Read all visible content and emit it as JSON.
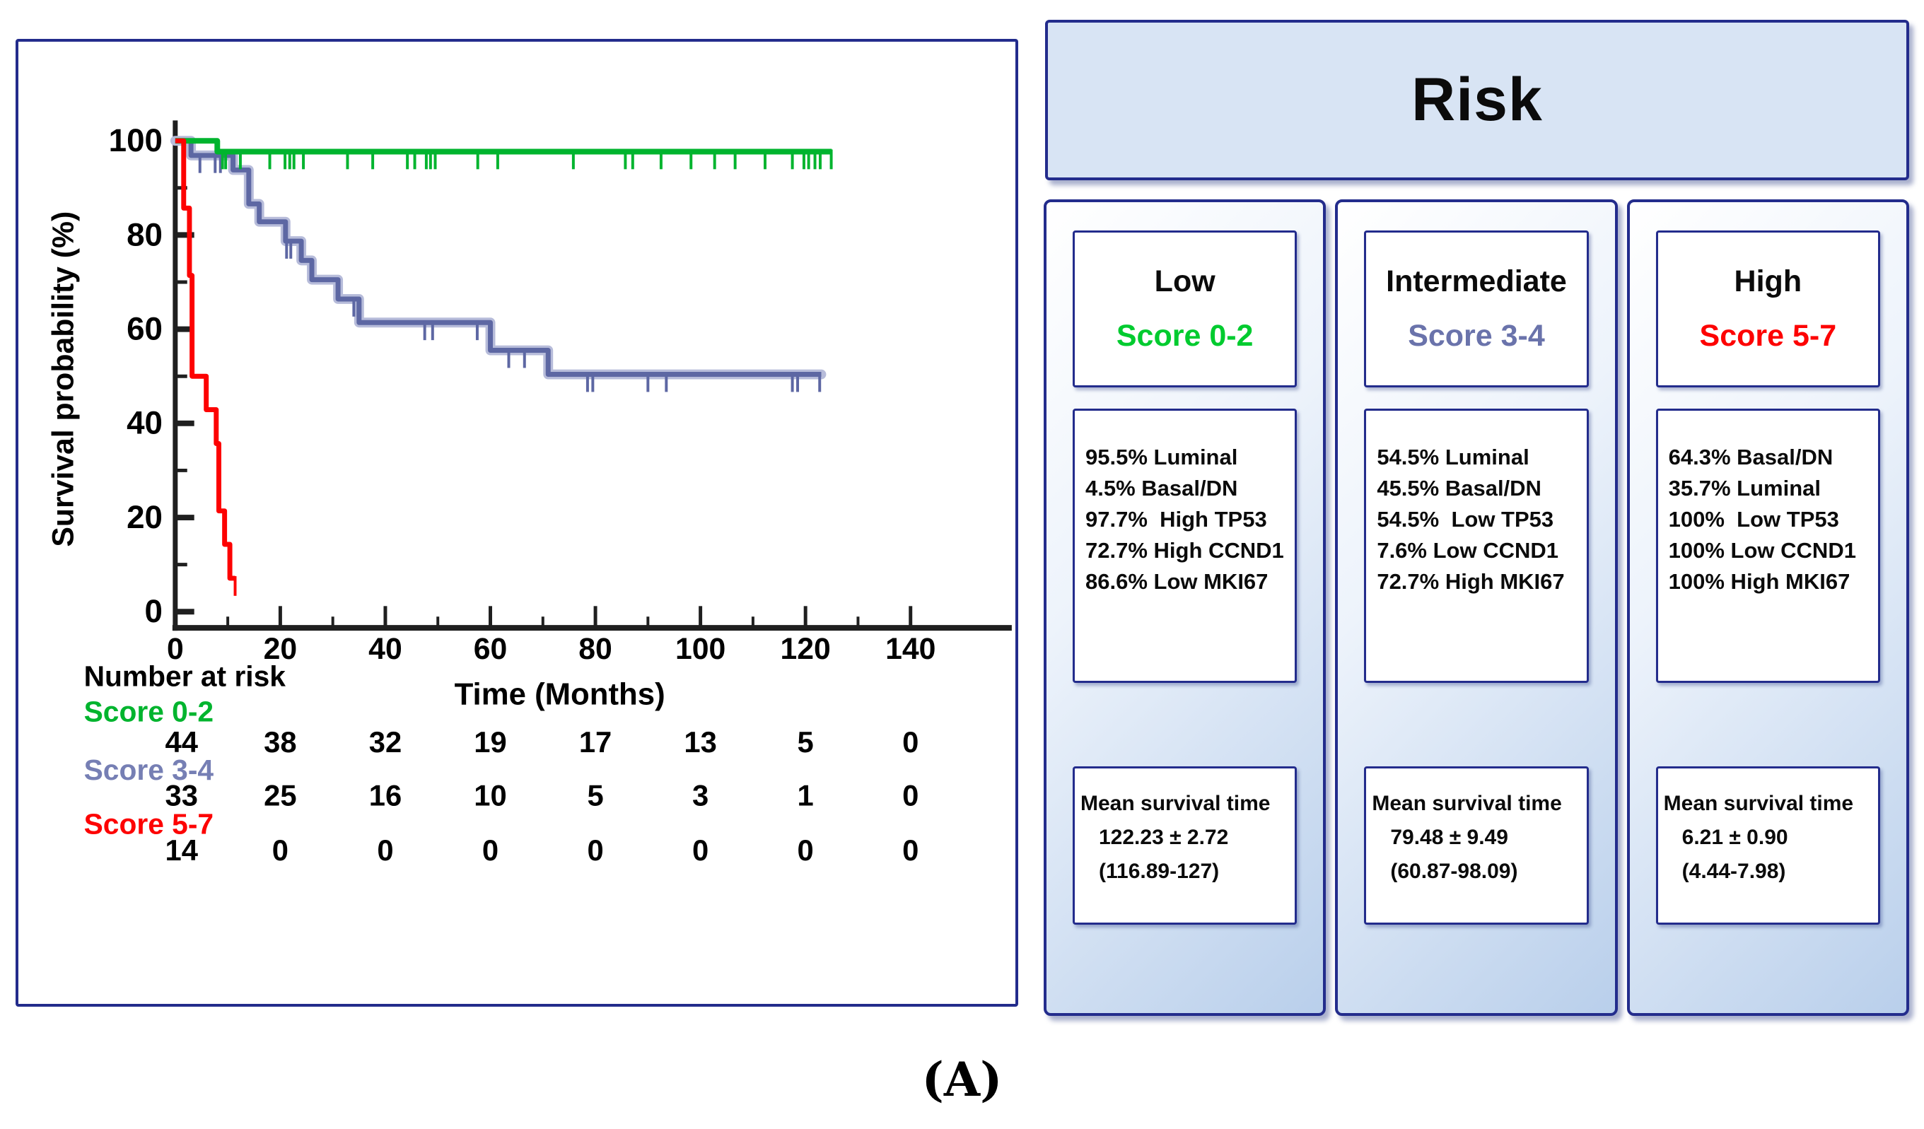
{
  "figure_label": "(A)",
  "chart_data": {
    "type": "line",
    "subtype": "kaplan-meier",
    "title": "",
    "xlabel": "Time (Months)",
    "ylabel": "Survival probability (%)",
    "xlim": [
      0,
      140
    ],
    "ylim": [
      0,
      100
    ],
    "grid": false,
    "x_major_ticks": [
      0,
      20,
      40,
      60,
      80,
      100,
      120,
      140
    ],
    "x_minor_ticks": [
      10,
      30,
      50,
      70,
      90,
      110,
      130
    ],
    "y_major_ticks": [
      0,
      20,
      40,
      60,
      80,
      100
    ],
    "y_minor_ticks": [
      10,
      30,
      50,
      70,
      90
    ],
    "series": [
      {
        "name": "Score 3-4",
        "color": "#5d67a3",
        "halo": "#b7bcda",
        "width": 7,
        "path": [
          [
            0,
            100
          ],
          [
            3,
            100
          ],
          [
            3,
            96.9
          ],
          [
            11,
            96.9
          ],
          [
            11,
            93.8
          ],
          [
            14,
            93.8
          ],
          [
            14,
            86.6
          ],
          [
            16,
            86.6
          ],
          [
            16,
            82.8
          ],
          [
            21,
            82.8
          ],
          [
            21,
            78.7
          ],
          [
            24,
            78.7
          ],
          [
            24,
            74.6
          ],
          [
            26,
            74.6
          ],
          [
            26,
            70.5
          ],
          [
            31,
            70.5
          ],
          [
            31,
            66.4
          ],
          [
            35,
            66.4
          ],
          [
            35,
            61.4
          ],
          [
            60,
            61.4
          ],
          [
            60,
            55.5
          ],
          [
            71,
            55.5
          ],
          [
            71,
            50.4
          ],
          [
            123,
            50.4
          ]
        ],
        "censors": [
          [
            4.7,
            96.9
          ],
          [
            7.6,
            96.9
          ],
          [
            8.6,
            96.9
          ],
          [
            21.2,
            78.7
          ],
          [
            22,
            78.7
          ],
          [
            34,
            66.4
          ],
          [
            34.8,
            66.4
          ],
          [
            47.5,
            61.4
          ],
          [
            49,
            61.4
          ],
          [
            57.5,
            61.4
          ],
          [
            63.5,
            55.5
          ],
          [
            66.5,
            55.5
          ],
          [
            78.5,
            50.4
          ],
          [
            79.5,
            50.4
          ],
          [
            90,
            50.4
          ],
          [
            93.5,
            50.4
          ],
          [
            117.5,
            50.4
          ],
          [
            118.5,
            50.4
          ],
          [
            122.7,
            50.4
          ]
        ]
      },
      {
        "name": "Score 0-2",
        "color": "#00b42e",
        "width": 8,
        "path": [
          [
            0,
            100
          ],
          [
            8,
            100
          ],
          [
            8,
            97.7
          ],
          [
            125,
            97.7
          ]
        ],
        "censors": [
          [
            9,
            97.7
          ],
          [
            9.6,
            97.7
          ],
          [
            12.4,
            97.7
          ],
          [
            18,
            97.7
          ],
          [
            20.9,
            97.7
          ],
          [
            21.8,
            97.7
          ],
          [
            22.6,
            97.7
          ],
          [
            24.4,
            97.7
          ],
          [
            32.8,
            97.7
          ],
          [
            37.6,
            97.7
          ],
          [
            44.2,
            97.7
          ],
          [
            45.6,
            97.7
          ],
          [
            47.8,
            97.7
          ],
          [
            48.6,
            97.7
          ],
          [
            49.5,
            97.7
          ],
          [
            57.6,
            97.7
          ],
          [
            61.4,
            97.7
          ],
          [
            75.8,
            97.7
          ],
          [
            85.7,
            97.7
          ],
          [
            87.1,
            97.7
          ],
          [
            92.5,
            97.7
          ],
          [
            98.2,
            97.7
          ],
          [
            102.7,
            97.7
          ],
          [
            106.6,
            97.7
          ],
          [
            112.3,
            97.7
          ],
          [
            117.5,
            97.7
          ],
          [
            119.7,
            97.7
          ],
          [
            120.6,
            97.7
          ],
          [
            121.8,
            97.7
          ],
          [
            122.8,
            97.7
          ],
          [
            124.9,
            97.7
          ]
        ]
      },
      {
        "name": "Score 5-7",
        "color": "#fd0202",
        "width": 7,
        "path": [
          [
            0,
            100
          ],
          [
            1.6,
            100
          ],
          [
            1.6,
            85.7
          ],
          [
            2.7,
            85.7
          ],
          [
            2.7,
            71.4
          ],
          [
            3.2,
            71.4
          ],
          [
            3.2,
            50
          ],
          [
            5.9,
            50
          ],
          [
            5.9,
            42.9
          ],
          [
            7.8,
            42.9
          ],
          [
            7.8,
            35.7
          ],
          [
            8.3,
            35.7
          ],
          [
            8.3,
            21.4
          ],
          [
            9.4,
            21.4
          ],
          [
            9.4,
            14.3
          ],
          [
            10.4,
            14.3
          ],
          [
            10.4,
            7.1
          ],
          [
            11.4,
            7.1
          ]
        ],
        "censors": [
          [
            11.4,
            7.1
          ]
        ]
      }
    ],
    "number_at_risk": {
      "header": "Number at risk",
      "times": [
        0,
        20,
        40,
        60,
        80,
        100,
        120,
        140
      ],
      "rows": [
        {
          "label": "Score 0-2",
          "color": "#00b42e",
          "values": [
            "44",
            "38",
            "32",
            "19",
            "17",
            "13",
            "5",
            "0"
          ]
        },
        {
          "label": "Score 3-4",
          "color": "#767fb4",
          "values": [
            "33",
            "25",
            "16",
            "10",
            "5",
            "3",
            "1",
            "0"
          ]
        },
        {
          "label": "Score 5-7",
          "color": "#fd0202",
          "values": [
            "14",
            "0",
            "0",
            "0",
            "0",
            "0",
            "0",
            "0"
          ]
        }
      ]
    }
  },
  "risk_panel": {
    "title": "Risk",
    "accent_border_color": "#232c8c",
    "header_fill": "#d8e4f4",
    "columns": [
      {
        "level": "Low",
        "score": "Score 0-2",
        "score_color": "#00cb2f",
        "stats": [
          "95.5% Luminal",
          "4.5% Basal/DN",
          "97.7%  High TP53",
          "72.7% High CCND1",
          "86.6% Low MKI67"
        ],
        "mean": [
          "Mean survival time",
          "122.23 ± 2.72",
          "(116.89-127)"
        ]
      },
      {
        "level": "Intermediate",
        "score": "Score 3-4",
        "score_color": "#6a73ab",
        "stats": [
          "54.5% Luminal",
          "45.5% Basal/DN",
          "54.5%  Low TP53",
          "7.6% Low CCND1",
          "72.7% High MKI67"
        ],
        "mean": [
          "Mean survival time",
          "79.48 ± 9.49",
          "(60.87-98.09)"
        ]
      },
      {
        "level": "High",
        "score": "Score 5-7",
        "score_color": "#fd0202",
        "stats": [
          "64.3% Basal/DN",
          "35.7% Luminal",
          "100%  Low TP53",
          "100% Low CCND1",
          "100% High MKI67"
        ],
        "mean": [
          "Mean survival time",
          "6.21 ± 0.90",
          "(4.44-7.98)"
        ]
      }
    ]
  }
}
